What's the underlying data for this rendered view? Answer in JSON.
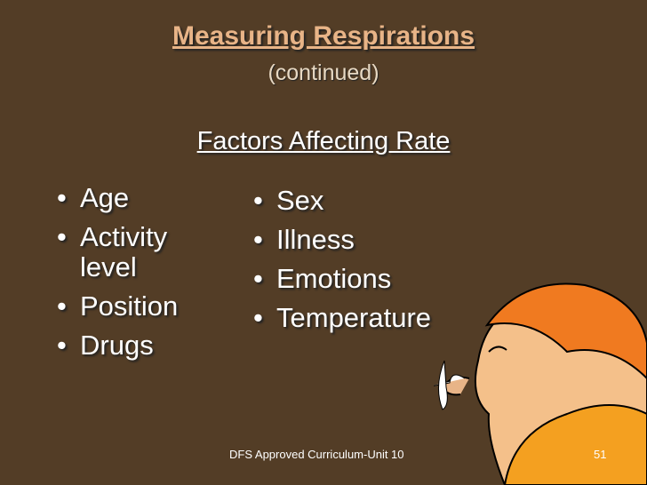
{
  "title": "Measuring Respirations",
  "subtitle": "(continued)",
  "heading": "Factors Affecting Rate",
  "left_list": [
    "Age",
    "Activity level",
    "Position",
    "Drugs"
  ],
  "right_list": [
    "Sex",
    "Illness",
    "Emotions",
    "Temperature"
  ],
  "footer": "DFS Approved Curriculum-Unit 10",
  "page_number": "51"
}
